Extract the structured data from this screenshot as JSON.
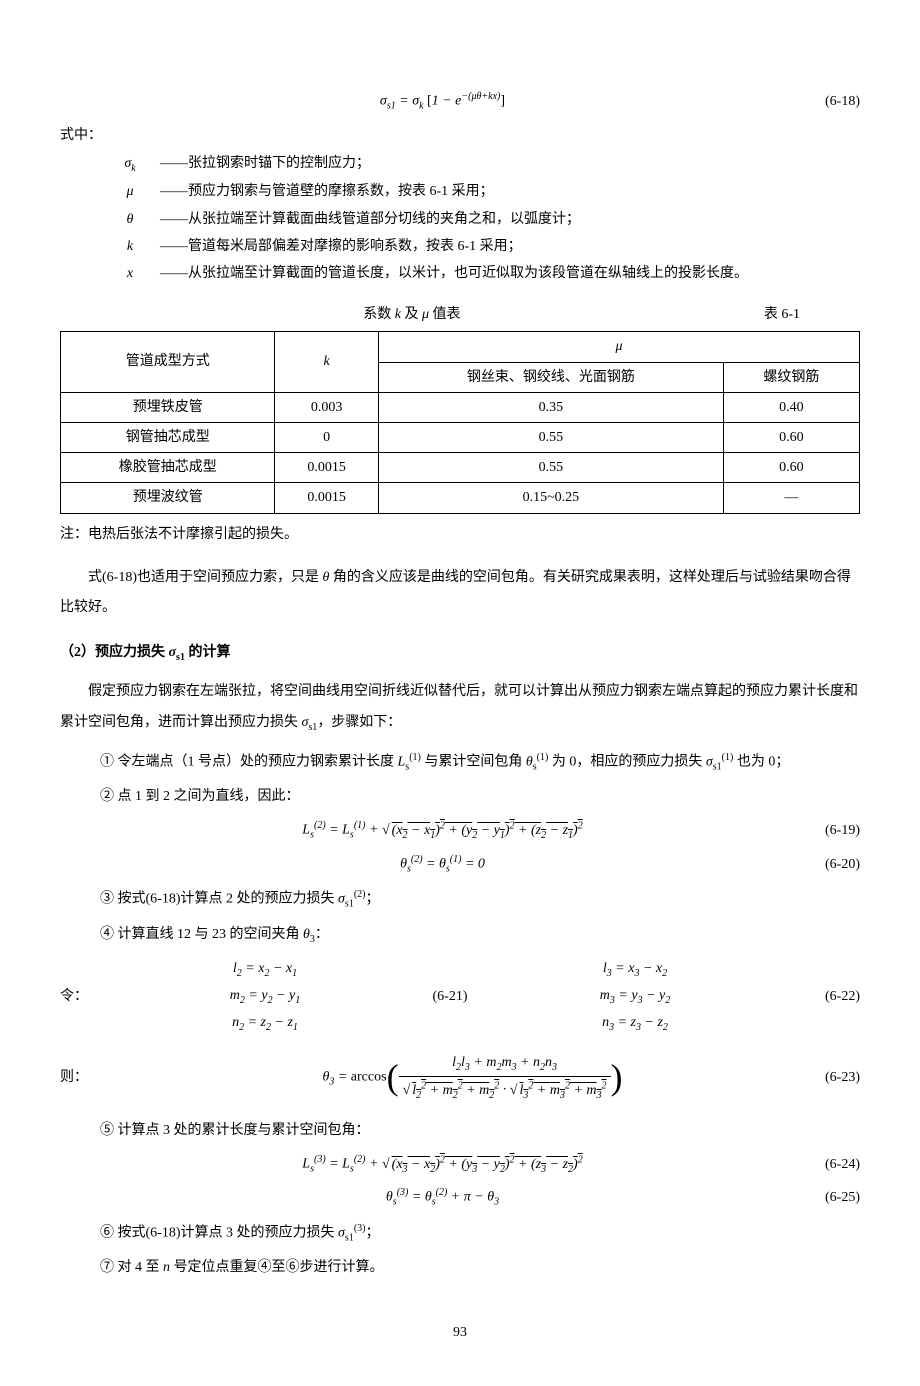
{
  "eq618": {
    "formula": "σ<sub>s1</sub> = σ<sub>k</sub> [1 − e<sup>−(μθ+kx)</sup>]",
    "number": "(6-18)"
  },
  "def_header": "式中：",
  "definitions": [
    {
      "symbol": "σ<sub>k</sub>",
      "text": "——张拉钢索时锚下的控制应力；"
    },
    {
      "symbol": "μ",
      "text": "——预应力钢索与管道壁的摩擦系数，按表 6-1 采用；"
    },
    {
      "symbol": "θ",
      "text": "——从张拉端至计算截面曲线管道部分切线的夹角之和，以弧度计；"
    },
    {
      "symbol": "k",
      "text": "——管道每米局部偏差对摩擦的影响系数，按表 6-1 采用；"
    },
    {
      "symbol": "x",
      "text": "——从张拉端至计算截面的管道长度，以米计，也可近似取为该段管道在纵轴线上的投影长度。"
    }
  ],
  "table": {
    "title": "系数 k 及 μ 值表",
    "label": "表 6-1",
    "header": {
      "col1": "管道成型方式",
      "col2": "k",
      "mu": "μ",
      "mu_sub1": "钢丝束、钢绞线、光面钢筋",
      "mu_sub2": "螺纹钢筋"
    },
    "rows": [
      {
        "c1": "预埋铁皮管",
        "c2": "0.003",
        "c3": "0.35",
        "c4": "0.40"
      },
      {
        "c1": "钢管抽芯成型",
        "c2": "0",
        "c3": "0.55",
        "c4": "0.60"
      },
      {
        "c1": "橡胶管抽芯成型",
        "c2": "0.0015",
        "c3": "0.55",
        "c4": "0.60"
      },
      {
        "c1": "预埋波纹管",
        "c2": "0.0015",
        "c3": "0.15~0.25",
        "c4": "—"
      }
    ]
  },
  "table_note": "注：电热后张法不计摩擦引起的损失。",
  "para1": "式(6-18)也适用于空间预应力索，只是 θ 角的含义应该是曲线的空间包角。有关研究成果表明，这样处理后与试验结果吻合得比较好。",
  "section_title": "（2）预应力损失 σ<sub>s1</sub> 的计算",
  "para2": "假定预应力钢索在左端张拉，将空间曲线用空间折线近似替代后，就可以计算出从预应力钢索左端点算起的预应力累计长度和累计空间包角，进而计算出预应力损失 σ<sub>s1</sub>，步骤如下：",
  "step1": "① 令左端点（1 号点）处的预应力钢索累计长度 L<sub>s</sub><sup>(1)</sup> 与累计空间包角 θ<sub>s</sub><sup>(1)</sup> 为 0，相应的预应力损失 σ<sub>s1</sub><sup>(1)</sup> 也为 0；",
  "step2_intro": "② 点 1 到 2 之间为直线，因此：",
  "eq619": {
    "formula": "L<sub>s</sub><sup>(2)</sup> = L<sub>s</sub><sup>(1)</sup> + √[(x<sub>2</sub> − x<sub>1</sub>)<sup>2</sup> + (y<sub>2</sub> − y<sub>1</sub>)<sup>2</sup> + (z<sub>2</sub> − z<sub>1</sub>)<sup>2</sup>]",
    "number": "(6-19)"
  },
  "eq620": {
    "formula": "θ<sub>s</sub><sup>(2)</sup> = θ<sub>s</sub><sup>(1)</sup> = 0",
    "number": "(6-20)"
  },
  "step3": "③ 按式(6-18)计算点 2 处的预应力损失 σ<sub>s1</sub><sup>(2)</sup>；",
  "step4_intro": "④ 计算直线 12 与 23 的空间夹角 θ<sub>3</sub>：",
  "dual_eq_prefix": "令：",
  "eq621": {
    "left": "l<sub>2</sub> = x<sub>2</sub> − x<sub>1</sub><br>m<sub>2</sub> = y<sub>2</sub> − y<sub>1</sub><br>n<sub>2</sub> = z<sub>2</sub> − z<sub>1</sub>",
    "number": "(6-21)"
  },
  "eq622": {
    "right": "l<sub>3</sub> = x<sub>3</sub> − x<sub>2</sub><br>m<sub>3</sub> = y<sub>3</sub> − y<sub>2</sub><br>n<sub>3</sub> = z<sub>3</sub> − z<sub>2</sub>",
    "number": "(6-22)"
  },
  "eq623_prefix": "则：",
  "eq623": {
    "formula_num": "l<sub>2</sub>l<sub>3</sub> + m<sub>2</sub>m<sub>3</sub> + n<sub>2</sub>n<sub>3</sub>",
    "formula_den": "√(l<sub>2</sub><sup>2</sup> + m<sub>2</sub><sup>2</sup> + m<sub>2</sub><sup>2</sup>) · √(l<sub>3</sub><sup>2</sup> + m<sub>3</sub><sup>2</sup> + m<sub>3</sub><sup>2</sup>)",
    "prefix": "θ<sub>3</sub> = arccos",
    "number": "(6-23)"
  },
  "step5_intro": "⑤ 计算点 3 处的累计长度与累计空间包角：",
  "eq624": {
    "formula": "L<sub>s</sub><sup>(3)</sup> = L<sub>s</sub><sup>(2)</sup> + √[(x<sub>3</sub> − x<sub>2</sub>)<sup>2</sup> + (y<sub>3</sub> − y<sub>2</sub>)<sup>2</sup> + (z<sub>3</sub> − z<sub>2</sub>)<sup>2</sup>]",
    "number": "(6-24)"
  },
  "eq625": {
    "formula": "θ<sub>s</sub><sup>(3)</sup> = θ<sub>s</sub><sup>(2)</sup> + π − θ<sub>3</sub>",
    "number": "(6-25)"
  },
  "step6": "⑥ 按式(6-18)计算点 3 处的预应力损失 σ<sub>s1</sub><sup>(3)</sup>；",
  "step7": "⑦ 对 4 至 n 号定位点重复④至⑥步进行计算。",
  "page_number": "93"
}
